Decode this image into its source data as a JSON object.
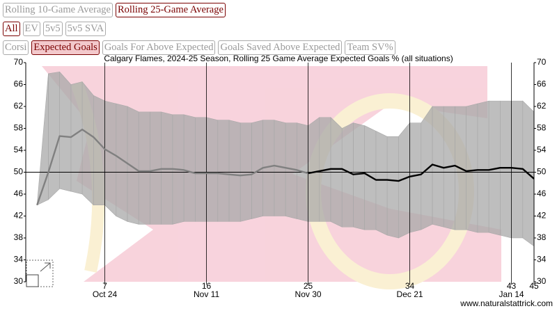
{
  "controls": {
    "averages": [
      {
        "label": "Rolling 10-Game Average",
        "selected": false
      },
      {
        "label": "Rolling 25-Game Average",
        "selected": true
      }
    ],
    "situations": [
      {
        "label": "All",
        "selected": true
      },
      {
        "label": "EV",
        "selected": false
      },
      {
        "label": "5v5",
        "selected": false
      },
      {
        "label": "5v5 SVA",
        "selected": false
      }
    ],
    "metrics": [
      {
        "label": "Corsi",
        "selected": false
      },
      {
        "label": "Expected Goals",
        "selected": true
      },
      {
        "label": "Goals For Above Expected",
        "selected": false
      },
      {
        "label": "Goals Saved Above Expected",
        "selected": false
      },
      {
        "label": "Team SV%",
        "selected": false
      }
    ]
  },
  "chart_data": {
    "type": "line",
    "title": "Calgary Flames, 2024-25 Season, Rolling 25 Game Average Expected Goals % (all situations)",
    "x": [
      1,
      2,
      3,
      4,
      5,
      6,
      7,
      8,
      9,
      10,
      11,
      12,
      13,
      14,
      15,
      16,
      17,
      18,
      19,
      20,
      21,
      22,
      23,
      24,
      25,
      26,
      27,
      28,
      29,
      30,
      31,
      32,
      33,
      34,
      35,
      36,
      37,
      38,
      39,
      40,
      41,
      42,
      43,
      44,
      45
    ],
    "series": [
      {
        "color": "#808080",
        "values": [
          44,
          50,
          56.6,
          56.4,
          57.8,
          56.4,
          54.2,
          53,
          51.6,
          50.2,
          50.2,
          50.6,
          50.6,
          50.4,
          49.8,
          49.8,
          49.8,
          49.6,
          49.4,
          49.6,
          50.8,
          51.2,
          50.8,
          50.4,
          49.8,
          null,
          null,
          null,
          null,
          null,
          null,
          null,
          null,
          null,
          null,
          null,
          null,
          null,
          null,
          null,
          null,
          null,
          null,
          null,
          null
        ]
      },
      {
        "color": "#000000",
        "values": [
          null,
          null,
          null,
          null,
          null,
          null,
          null,
          null,
          null,
          null,
          null,
          null,
          null,
          null,
          null,
          null,
          null,
          null,
          null,
          null,
          null,
          null,
          null,
          null,
          49.8,
          50.2,
          50.6,
          50.6,
          49.6,
          49.8,
          48.6,
          48.6,
          48.4,
          49.2,
          49.6,
          51.4,
          50.8,
          51.2,
          50.2,
          50.4,
          50.4,
          50.8,
          50.8,
          50.6,
          48.8
        ]
      }
    ],
    "band": {
      "color": "#a8a8a8",
      "upper": [
        44,
        68,
        68.3,
        66,
        66.5,
        64,
        63,
        62.5,
        62,
        61,
        61,
        61,
        60.5,
        60.5,
        60,
        60,
        59.5,
        59.5,
        59,
        59,
        59.5,
        59.5,
        59,
        59,
        58.5,
        60,
        60,
        58,
        59,
        58.5,
        57.5,
        56.5,
        56.5,
        59,
        59,
        62,
        62,
        62,
        62,
        62.5,
        63,
        63,
        63,
        63,
        61
      ],
      "lower": [
        44,
        45,
        47,
        46.5,
        46,
        44,
        44,
        42,
        41,
        40.5,
        40.5,
        40.5,
        40.5,
        41,
        41,
        41,
        41,
        41,
        41,
        41.5,
        42,
        42,
        42,
        41.5,
        41,
        41,
        41,
        40,
        40,
        39.5,
        39.5,
        38.5,
        38,
        39,
        39.5,
        40.5,
        40,
        39.5,
        39.5,
        39,
        39,
        38.5,
        38,
        38,
        36.5
      ]
    },
    "reference_line": 50,
    "xlim": [
      0,
      45
    ],
    "xticks": [
      7,
      16,
      25,
      34,
      43,
      45
    ],
    "date_labels": [
      {
        "value": 7,
        "label": "Oct 24"
      },
      {
        "value": 16,
        "label": "Nov 11"
      },
      {
        "value": 25,
        "label": "Nov 30"
      },
      {
        "value": 34,
        "label": "Dec 21"
      },
      {
        "value": 43,
        "label": "Jan 14"
      }
    ],
    "ylim": [
      30,
      70
    ],
    "yticks": [
      30,
      34,
      38,
      42,
      46,
      50,
      54,
      58,
      62,
      66,
      70
    ],
    "watermark": "www.naturalstattrick.com"
  }
}
